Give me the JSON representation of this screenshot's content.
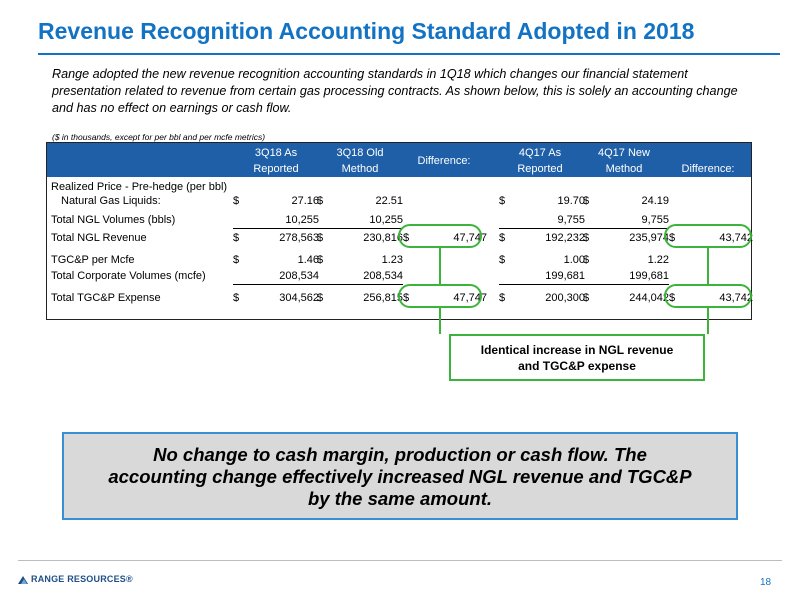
{
  "slide": {
    "title": "Revenue Recognition Accounting Standard Adopted in 2018",
    "intro": "Range adopted the new revenue recognition accounting standards in 1Q18 which changes our financial statement presentation related to revenue from certain gas processing contracts.  As shown below, this is solely an accounting change and has no effect on earnings or cash flow.",
    "units_note": "($ in thousands, except for per bbl and per mcfe metrics)",
    "page_number": "18",
    "logo_text": "RANGE RESOURCES®"
  },
  "table": {
    "headers": {
      "c1": [
        "3Q18 As",
        "Reported"
      ],
      "c2": [
        "3Q18 Old",
        "Method"
      ],
      "c3": [
        "Difference:"
      ],
      "c4": [
        "4Q17 As",
        "Reported"
      ],
      "c5": [
        "4Q17 New",
        "Method"
      ],
      "c6": [
        "Difference:"
      ]
    },
    "rows": [
      {
        "label": "Realized Price - Pre-hedge (per bbl)",
        "values": [
          "",
          "",
          "",
          "",
          "",
          ""
        ]
      },
      {
        "label": "Natural Gas Liquids:",
        "values": [
          "27.16",
          "22.51",
          "",
          "19.70",
          "24.19",
          ""
        ]
      },
      {
        "label": "Total NGL Volumes (bbls)",
        "values": [
          "10,255",
          "10,255",
          "",
          "9,755",
          "9,755",
          ""
        ]
      },
      {
        "label": "Total NGL Revenue",
        "values": [
          "278,563",
          "230,816",
          "47,747",
          "192,232",
          "235,974",
          "43,742"
        ]
      },
      {
        "label": "TGC&P per Mcfe",
        "values": [
          "1.46",
          "1.23",
          "",
          "1.00",
          "1.22",
          ""
        ]
      },
      {
        "label": "Total Corporate Volumes (mcfe)",
        "values": [
          "208,534",
          "208,534",
          "",
          "199,681",
          "199,681",
          ""
        ]
      },
      {
        "label": "Total TGC&P Expense",
        "values": [
          "304,562",
          "256,815",
          "47,747",
          "200,300",
          "244,042",
          "43,742"
        ]
      }
    ],
    "currency_symbol": "$"
  },
  "callout": {
    "line1": "Identical increase in NGL revenue",
    "line2": "and TGC&P expense"
  },
  "summary": {
    "line1": "No change to cash margin, production or cash flow.  The",
    "line2": "accounting change effectively increased NGL revenue and TGC&P",
    "line3": "by the same amount."
  },
  "colors": {
    "title_blue": "#1273c4",
    "header_band": "#1f5fa8",
    "highlight_green": "#3cb43c",
    "summary_fill": "#d9d9d9"
  }
}
